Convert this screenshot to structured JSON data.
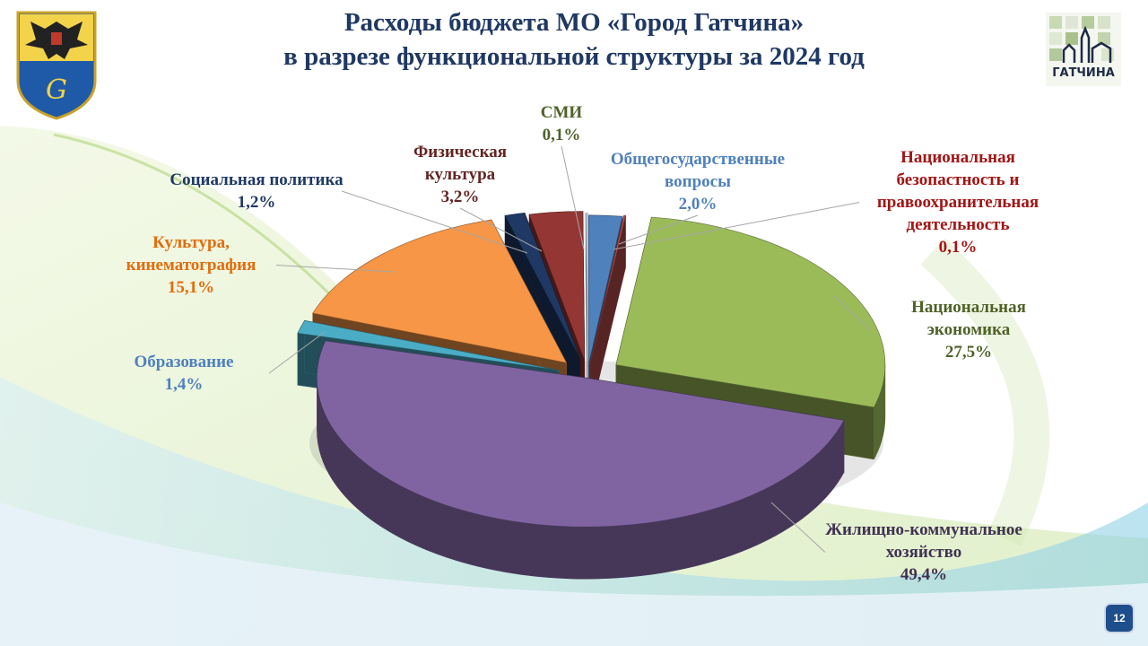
{
  "title_line1": "Расходы бюджета МО «Город Гатчина»",
  "title_line2": "в разрезе функциональной структуры за 2024 год",
  "logo_text": "ГАТЧИНА",
  "page_number": "12",
  "chart_data": {
    "type": "pie",
    "title": "Расходы бюджета МО «Город Гатчина» в разрезе функциональной структуры за 2024 год",
    "unit": "%",
    "slices": [
      {
        "label_lines": [
          "Общегосударственные",
          "вопросы"
        ],
        "value_label": "2,0%",
        "value": 2.0,
        "color": "#4f81bd",
        "label_color": "#4f81bd"
      },
      {
        "label_lines": [
          "Национальная",
          "безопастность и",
          "правоохранительная",
          "деятельность"
        ],
        "value_label": "0,1%",
        "value": 0.1,
        "color": "#c0504d",
        "label_color": "#a31515"
      },
      {
        "label_lines": [
          "Национальная",
          "экономика"
        ],
        "value_label": "27,5%",
        "value": 27.5,
        "color": "#9bbb59",
        "label_color": "#4f6228"
      },
      {
        "label_lines": [
          "Жилищно-коммунальное",
          "хозяйство"
        ],
        "value_label": "49,4%",
        "value": 49.4,
        "color": "#8064a2",
        "label_color": "#403152"
      },
      {
        "label_lines": [
          "Образование"
        ],
        "value_label": "1,4%",
        "value": 1.4,
        "color": "#4bacc6",
        "label_color": "#4f81bd"
      },
      {
        "label_lines": [
          "Культура,",
          "кинематография"
        ],
        "value_label": "15,1%",
        "value": 15.1,
        "color": "#f79646",
        "label_color": "#e46c0a"
      },
      {
        "label_lines": [
          "Социальная политика"
        ],
        "value_label": "1,2%",
        "value": 1.2,
        "color": "#1f3864",
        "label_color": "#1f3864"
      },
      {
        "label_lines": [
          "Физическая",
          "культура"
        ],
        "value_label": "3,2%",
        "value": 3.2,
        "color": "#943634",
        "label_color": "#632523"
      },
      {
        "label_lines": [
          "СМИ"
        ],
        "value_label": "0,1%",
        "value": 0.1,
        "color": "#d0d8e8",
        "label_color": "#4f6228"
      }
    ]
  }
}
